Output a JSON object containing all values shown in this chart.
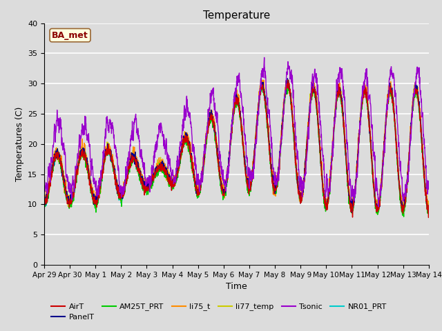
{
  "title": "Temperature",
  "xlabel": "Time",
  "ylabel": "Temperatures (C)",
  "ylim": [
    0,
    40
  ],
  "background_color": "#dcdcdc",
  "grid_color": "#ffffff",
  "annotation_text": "BA_met",
  "annotation_bg": "#ffffe0",
  "annotation_border": "#8b0000",
  "series": {
    "AirT": {
      "color": "#cc0000",
      "lw": 1.0
    },
    "PanelT": {
      "color": "#00008b",
      "lw": 1.0
    },
    "AM25T_PRT": {
      "color": "#00cc00",
      "lw": 1.0
    },
    "li75_t": {
      "color": "#ff8c00",
      "lw": 1.0
    },
    "li77_temp": {
      "color": "#cccc00",
      "lw": 1.0
    },
    "Tsonic": {
      "color": "#9900cc",
      "lw": 1.0
    },
    "NR01_PRT": {
      "color": "#00cccc",
      "lw": 1.0
    }
  },
  "tick_labels": [
    "Apr 29",
    "Apr 30",
    "May 1",
    "May 2",
    "May 3",
    "May 4",
    "May 5",
    "May 6",
    "May 7",
    "May 8",
    "May 9",
    "May 10",
    "May 11",
    "May 12",
    "May 13",
    "May 14"
  ],
  "yticks": [
    0,
    5,
    10,
    15,
    20,
    25,
    30,
    35,
    40
  ]
}
